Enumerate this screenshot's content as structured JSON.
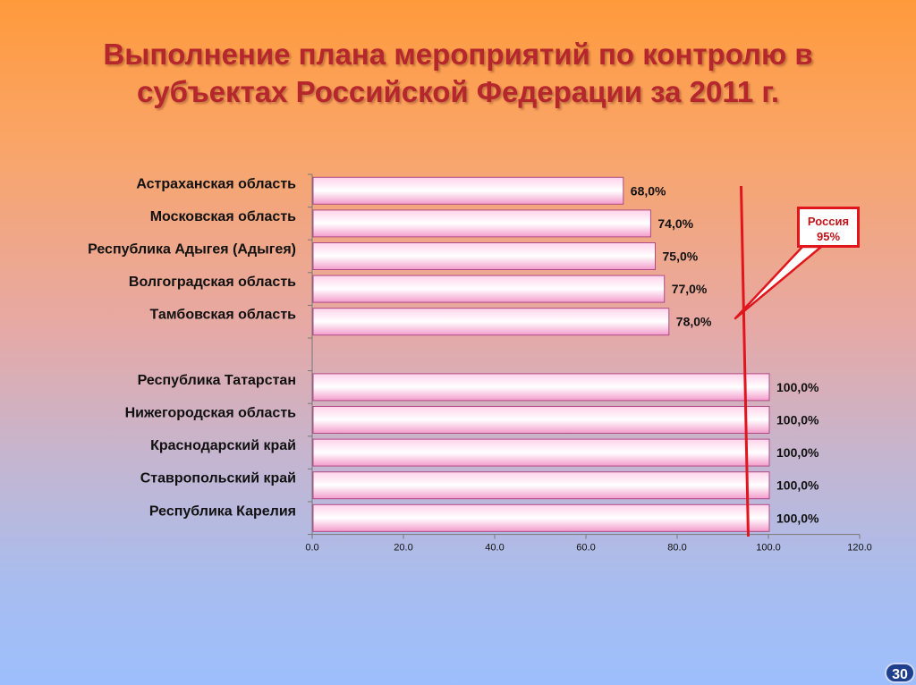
{
  "slide": {
    "title": "Выполнение плана мероприятий по контролю в субъектах Российской Федерации за 2011 г.",
    "page_number": "30"
  },
  "callout": {
    "line1": "Россия",
    "line2": "95%"
  },
  "chart_data": {
    "type": "bar",
    "orientation": "horizontal",
    "categories": [
      "Астраханская область",
      "Московская область",
      "Республика Адыгея (Адыгея)",
      "Волгоградская область",
      "Тамбовская область",
      "",
      "Республика Татарстан",
      "Нижегородская область",
      "Краснодарский край",
      "Ставропольский край",
      "Республика Карелия"
    ],
    "values": [
      68,
      74,
      75,
      77,
      78,
      null,
      100,
      100,
      100,
      100,
      100
    ],
    "data_labels": [
      "68,0%",
      "74,0%",
      "75,0%",
      "77,0%",
      "78,0%",
      "",
      "100,0%",
      "100,0%",
      "100,0%",
      "100,0%",
      "100,0%"
    ],
    "xlim": [
      0,
      120
    ],
    "x_ticks": [
      "0.0",
      "20.0",
      "40.0",
      "60.0",
      "80.0",
      "100.0",
      "120.0"
    ],
    "grid": false,
    "reference_line": {
      "label": "Россия 95%",
      "value": 95,
      "color": "#e0161c"
    },
    "colors": {
      "bar_fill_light": "#ffffff",
      "bar_fill_pink": "#f7a8d2",
      "bar_border": "#b04a86"
    }
  }
}
